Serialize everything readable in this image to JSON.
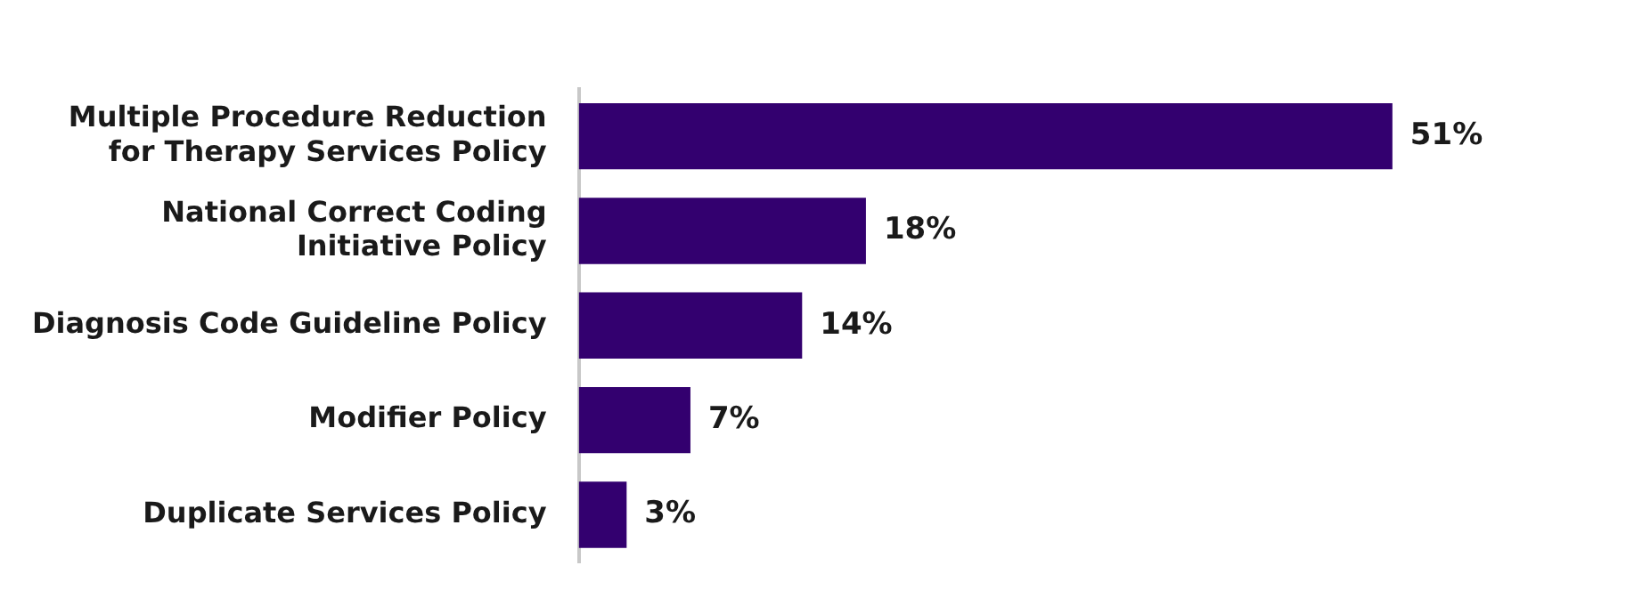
{
  "chart_data": {
    "type": "bar",
    "orientation": "horizontal",
    "categories": [
      "Multiple Procedure Reduction for Therapy Services Policy",
      "National Correct Coding Initiative Policy",
      "Diagnosis Code Guideline Policy",
      "Modifier Policy",
      "Duplicate Services Policy"
    ],
    "values": [
      51,
      18,
      14,
      7,
      3
    ],
    "color": "#33006f",
    "value_labels": [
      "51%",
      "18%",
      "14%",
      "7%",
      "3%"
    ],
    "tick_labels": "y"
  }
}
